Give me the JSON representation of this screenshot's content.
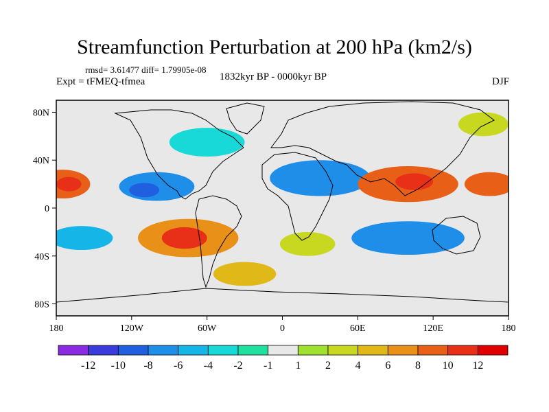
{
  "title": "Streamfunction Perturbation at 200 hPa (km2/s)",
  "stats": "rmsd= 3.61477 diff= 1.79905e-08",
  "experiment": "Expt = tFMEQ-tfmea",
  "period": "1832kyr BP - 0000kyr BP",
  "season": "DJF",
  "axes": {
    "x_ticks": [
      "180",
      "120W",
      "60W",
      "0",
      "60E",
      "120E",
      "180"
    ],
    "x_values": [
      -180,
      -120,
      -60,
      0,
      60,
      120,
      180
    ],
    "y_ticks": [
      "80N",
      "40N",
      "0",
      "40S",
      "80S"
    ],
    "y_values": [
      80,
      40,
      0,
      -40,
      -80
    ],
    "lon_range": [
      -180,
      180
    ],
    "lat_range": [
      -90,
      90
    ]
  },
  "colorbar": {
    "labels": [
      "-12",
      "-10",
      "-8",
      "-6",
      "-4",
      "-2",
      "-1",
      "1",
      "2",
      "4",
      "6",
      "8",
      "10",
      "12"
    ],
    "colors": [
      "#8a2be2",
      "#3b3bdb",
      "#1f5fe0",
      "#1f8ee8",
      "#15b5e8",
      "#18d8d8",
      "#20e0a0",
      "#e8e8e8",
      "#a0e030",
      "#c8d820",
      "#e0b818",
      "#e89018",
      "#e86018",
      "#e83018",
      "#e00000"
    ]
  },
  "anomalies": [
    {
      "lon": -175,
      "lat": 20,
      "rx": 22,
      "ry": 12,
      "color": "#e86018",
      "level": 8
    },
    {
      "lon": -170,
      "lat": 20,
      "rx": 10,
      "ry": 6,
      "color": "#e83018",
      "level": 10
    },
    {
      "lon": -100,
      "lat": 18,
      "rx": 30,
      "ry": 12,
      "color": "#1f8ee8",
      "level": -6
    },
    {
      "lon": -110,
      "lat": 15,
      "rx": 12,
      "ry": 6,
      "color": "#1f5fe0",
      "level": -8
    },
    {
      "lon": -60,
      "lat": 55,
      "rx": 30,
      "ry": 12,
      "color": "#18d8d8",
      "level": -2
    },
    {
      "lon": -75,
      "lat": -25,
      "rx": 40,
      "ry": 16,
      "color": "#e89018",
      "level": 6
    },
    {
      "lon": -78,
      "lat": -25,
      "rx": 18,
      "ry": 9,
      "color": "#e83018",
      "level": 10
    },
    {
      "lon": -160,
      "lat": -25,
      "rx": 25,
      "ry": 10,
      "color": "#15b5e8",
      "level": -4
    },
    {
      "lon": -30,
      "lat": -55,
      "rx": 25,
      "ry": 10,
      "color": "#e0b818",
      "level": 4
    },
    {
      "lon": 20,
      "lat": -30,
      "rx": 22,
      "ry": 10,
      "color": "#c8d820",
      "level": 2
    },
    {
      "lon": 30,
      "lat": 25,
      "rx": 40,
      "ry": 15,
      "color": "#1f8ee8",
      "level": -6
    },
    {
      "lon": 100,
      "lat": 20,
      "rx": 40,
      "ry": 15,
      "color": "#e86018",
      "level": 8
    },
    {
      "lon": 105,
      "lat": 22,
      "rx": 15,
      "ry": 7,
      "color": "#e83018",
      "level": 10
    },
    {
      "lon": 100,
      "lat": -25,
      "rx": 45,
      "ry": 14,
      "color": "#1f8ee8",
      "level": -6
    },
    {
      "lon": 160,
      "lat": 70,
      "rx": 20,
      "ry": 10,
      "color": "#c8d820",
      "level": 2
    },
    {
      "lon": 165,
      "lat": 20,
      "rx": 20,
      "ry": 10,
      "color": "#e86018",
      "level": 8
    }
  ]
}
